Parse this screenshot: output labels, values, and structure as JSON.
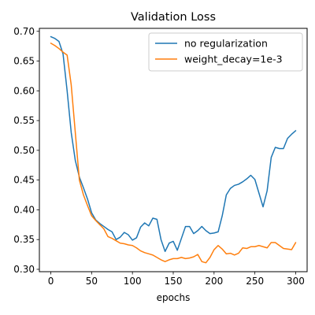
{
  "chart_data": {
    "type": "line",
    "title": "Validation Loss",
    "xlabel": "epochs",
    "ylabel": "",
    "xlim": [
      -14,
      314
    ],
    "ylim": [
      0.296,
      0.705
    ],
    "xticks": [
      0,
      50,
      100,
      150,
      200,
      250,
      300
    ],
    "yticks": [
      0.3,
      0.35,
      0.4,
      0.45,
      0.5,
      0.55,
      0.6,
      0.65,
      0.7
    ],
    "grid": false,
    "legend_position": "top-right",
    "series": [
      {
        "name": "no regularization",
        "color": "#1f77b4",
        "points": [
          [
            0,
            0.691
          ],
          [
            5,
            0.688
          ],
          [
            10,
            0.683
          ],
          [
            15,
            0.662
          ],
          [
            20,
            0.6
          ],
          [
            25,
            0.53
          ],
          [
            30,
            0.483
          ],
          [
            35,
            0.455
          ],
          [
            40,
            0.437
          ],
          [
            45,
            0.418
          ],
          [
            50,
            0.395
          ],
          [
            55,
            0.383
          ],
          [
            60,
            0.377
          ],
          [
            65,
            0.372
          ],
          [
            70,
            0.367
          ],
          [
            75,
            0.363
          ],
          [
            80,
            0.35
          ],
          [
            85,
            0.354
          ],
          [
            90,
            0.362
          ],
          [
            95,
            0.358
          ],
          [
            100,
            0.349
          ],
          [
            105,
            0.353
          ],
          [
            110,
            0.371
          ],
          [
            115,
            0.378
          ],
          [
            120,
            0.373
          ],
          [
            125,
            0.386
          ],
          [
            130,
            0.384
          ],
          [
            135,
            0.35
          ],
          [
            140,
            0.33
          ],
          [
            145,
            0.344
          ],
          [
            150,
            0.347
          ],
          [
            155,
            0.332
          ],
          [
            160,
            0.352
          ],
          [
            165,
            0.372
          ],
          [
            170,
            0.372
          ],
          [
            175,
            0.36
          ],
          [
            180,
            0.365
          ],
          [
            185,
            0.372
          ],
          [
            190,
            0.365
          ],
          [
            195,
            0.36
          ],
          [
            200,
            0.361
          ],
          [
            205,
            0.363
          ],
          [
            210,
            0.39
          ],
          [
            215,
            0.425
          ],
          [
            220,
            0.436
          ],
          [
            225,
            0.441
          ],
          [
            230,
            0.443
          ],
          [
            235,
            0.447
          ],
          [
            240,
            0.452
          ],
          [
            245,
            0.458
          ],
          [
            250,
            0.451
          ],
          [
            255,
            0.428
          ],
          [
            260,
            0.405
          ],
          [
            265,
            0.432
          ],
          [
            270,
            0.488
          ],
          [
            275,
            0.505
          ],
          [
            280,
            0.503
          ],
          [
            285,
            0.503
          ],
          [
            290,
            0.52
          ],
          [
            295,
            0.527
          ],
          [
            300,
            0.533
          ]
        ]
      },
      {
        "name": "weight_decay=1e-3",
        "color": "#ff7f0e",
        "points": [
          [
            0,
            0.68
          ],
          [
            5,
            0.676
          ],
          [
            10,
            0.671
          ],
          [
            15,
            0.665
          ],
          [
            20,
            0.66
          ],
          [
            25,
            0.61
          ],
          [
            30,
            0.53
          ],
          [
            35,
            0.45
          ],
          [
            40,
            0.425
          ],
          [
            45,
            0.407
          ],
          [
            50,
            0.39
          ],
          [
            55,
            0.382
          ],
          [
            60,
            0.375
          ],
          [
            65,
            0.368
          ],
          [
            70,
            0.355
          ],
          [
            75,
            0.352
          ],
          [
            80,
            0.348
          ],
          [
            85,
            0.344
          ],
          [
            90,
            0.343
          ],
          [
            95,
            0.341
          ],
          [
            100,
            0.34
          ],
          [
            105,
            0.336
          ],
          [
            110,
            0.331
          ],
          [
            115,
            0.328
          ],
          [
            120,
            0.326
          ],
          [
            125,
            0.324
          ],
          [
            130,
            0.32
          ],
          [
            135,
            0.316
          ],
          [
            140,
            0.313
          ],
          [
            145,
            0.316
          ],
          [
            150,
            0.318
          ],
          [
            155,
            0.318
          ],
          [
            160,
            0.32
          ],
          [
            165,
            0.318
          ],
          [
            170,
            0.319
          ],
          [
            175,
            0.321
          ],
          [
            180,
            0.325
          ],
          [
            185,
            0.313
          ],
          [
            190,
            0.311
          ],
          [
            195,
            0.32
          ],
          [
            200,
            0.333
          ],
          [
            205,
            0.34
          ],
          [
            210,
            0.334
          ],
          [
            215,
            0.326
          ],
          [
            220,
            0.327
          ],
          [
            225,
            0.324
          ],
          [
            230,
            0.327
          ],
          [
            235,
            0.336
          ],
          [
            240,
            0.335
          ],
          [
            245,
            0.338
          ],
          [
            250,
            0.338
          ],
          [
            255,
            0.34
          ],
          [
            260,
            0.338
          ],
          [
            265,
            0.336
          ],
          [
            270,
            0.345
          ],
          [
            275,
            0.345
          ],
          [
            280,
            0.34
          ],
          [
            285,
            0.335
          ],
          [
            290,
            0.334
          ],
          [
            295,
            0.333
          ],
          [
            300,
            0.345
          ]
        ]
      }
    ]
  }
}
